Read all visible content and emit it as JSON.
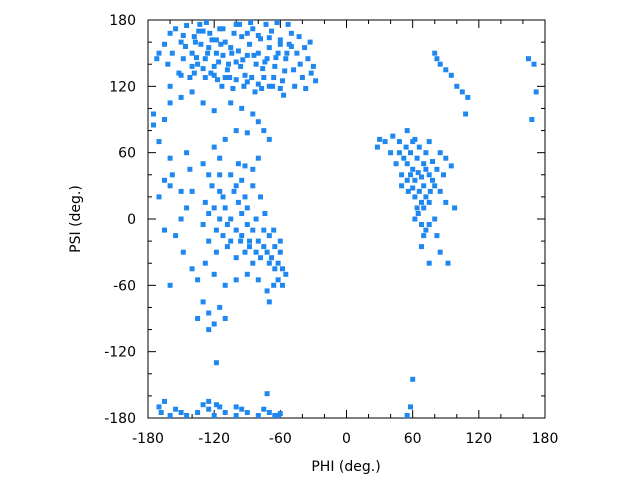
{
  "chart_data": {
    "type": "scatter",
    "title": "",
    "xlabel": "PHI (deg.)",
    "ylabel": "PSI (deg.)",
    "xlim": [
      -180,
      180
    ],
    "ylim": [
      -180,
      180
    ],
    "xticks": [
      -180,
      -120,
      -60,
      0,
      60,
      120,
      180
    ],
    "yticks": [
      -180,
      -120,
      -60,
      0,
      60,
      120,
      180
    ],
    "xtick_labels": [
      "-180",
      "-120",
      "-60",
      "0",
      "60",
      "120",
      "180"
    ],
    "ytick_labels": [
      "-180",
      "-120",
      "-60",
      "0",
      "60",
      "120",
      "180"
    ],
    "grid": false,
    "legend": "none",
    "marker_color": "#1f88f0",
    "marker": "square",
    "points": [
      [
        -160,
        168
      ],
      [
        -155,
        172
      ],
      [
        -150,
        160
      ],
      [
        -145,
        175
      ],
      [
        -140,
        150
      ],
      [
        -138,
        165
      ],
      [
        -135,
        140
      ],
      [
        -132,
        158
      ],
      [
        -130,
        170
      ],
      [
        -128,
        145
      ],
      [
        -125,
        155
      ],
      [
        -122,
        162
      ],
      [
        -120,
        138
      ],
      [
        -118,
        150
      ],
      [
        -115,
        172
      ],
      [
        -112,
        148
      ],
      [
        -110,
        160
      ],
      [
        -108,
        135
      ],
      [
        -105,
        155
      ],
      [
        -102,
        168
      ],
      [
        -100,
        142
      ],
      [
        -98,
        152
      ],
      [
        -95,
        165
      ],
      [
        -92,
        130
      ],
      [
        -90,
        148
      ],
      [
        -88,
        158
      ],
      [
        -85,
        172
      ],
      [
        -82,
        140
      ],
      [
        -80,
        150
      ],
      [
        -78,
        163
      ],
      [
        -75,
        128
      ],
      [
        -72,
        145
      ],
      [
        -70,
        155
      ],
      [
        -68,
        170
      ],
      [
        -65,
        138
      ],
      [
        -62,
        150
      ],
      [
        -60,
        162
      ],
      [
        -58,
        125
      ],
      [
        -55,
        145
      ],
      [
        -52,
        158
      ],
      [
        -50,
        168
      ],
      [
        -48,
        135
      ],
      [
        -45,
        150
      ],
      [
        -42,
        140
      ],
      [
        -40,
        128
      ],
      [
        -38,
        155
      ],
      [
        -35,
        145
      ],
      [
        -32,
        132
      ],
      [
        -30,
        138
      ],
      [
        -28,
        125
      ],
      [
        -170,
        150
      ],
      [
        -172,
        145
      ],
      [
        -165,
        158
      ],
      [
        -162,
        140
      ],
      [
        -158,
        150
      ],
      [
        -152,
        132
      ],
      [
        -148,
        145
      ],
      [
        -142,
        128
      ],
      [
        -137,
        160
      ],
      [
        -133,
        176
      ],
      [
        -127,
        178
      ],
      [
        -123,
        132
      ],
      [
        -117,
        126
      ],
      [
        -113,
        120
      ],
      [
        -107,
        140
      ],
      [
        -103,
        118
      ],
      [
        -97,
        176
      ],
      [
        -93,
        120
      ],
      [
        -87,
        178
      ],
      [
        -83,
        115
      ],
      [
        -77,
        118
      ],
      [
        -73,
        176
      ],
      [
        -67,
        120
      ],
      [
        -63,
        178
      ],
      [
        -57,
        112
      ],
      [
        -53,
        176
      ],
      [
        -47,
        120
      ],
      [
        -43,
        165
      ],
      [
        -37,
        118
      ],
      [
        -33,
        160
      ],
      [
        -118,
        162
      ],
      [
        -128,
        128
      ],
      [
        -138,
        132
      ],
      [
        -96,
        138
      ],
      [
        -86,
        128
      ],
      [
        -76,
        136
      ],
      [
        -66,
        128
      ],
      [
        -56,
        134
      ],
      [
        -116,
        142
      ],
      [
        -106,
        128
      ],
      [
        -146,
        156
      ],
      [
        -136,
        146
      ],
      [
        -126,
        150
      ],
      [
        -114,
        158
      ],
      [
        -104,
        150
      ],
      [
        -94,
        144
      ],
      [
        -84,
        148
      ],
      [
        -74,
        142
      ],
      [
        -64,
        146
      ],
      [
        -54,
        150
      ],
      [
        -148,
        166
      ],
      [
        -134,
        170
      ],
      [
        -124,
        168
      ],
      [
        -112,
        172
      ],
      [
        -100,
        176
      ],
      [
        -90,
        168
      ],
      [
        -80,
        166
      ],
      [
        -70,
        164
      ],
      [
        -60,
        158
      ],
      [
        -50,
        156
      ],
      [
        -140,
        138
      ],
      [
        -130,
        136
      ],
      [
        -120,
        130
      ],
      [
        -110,
        128
      ],
      [
        -100,
        126
      ],
      [
        -90,
        124
      ],
      [
        -80,
        122
      ],
      [
        -70,
        120
      ],
      [
        -60,
        118
      ],
      [
        -150,
        130
      ],
      [
        -160,
        120
      ],
      [
        -175,
        95
      ],
      [
        -175,
        85
      ],
      [
        -170,
        70
      ],
      [
        -150,
        110
      ],
      [
        -140,
        115
      ],
      [
        -130,
        105
      ],
      [
        -120,
        98
      ],
      [
        -105,
        105
      ],
      [
        -95,
        100
      ],
      [
        -85,
        95
      ],
      [
        -80,
        88
      ],
      [
        -75,
        80
      ],
      [
        -70,
        72
      ],
      [
        -90,
        78
      ],
      [
        -100,
        80
      ],
      [
        -110,
        72
      ],
      [
        -120,
        65
      ],
      [
        -160,
        105
      ],
      [
        -165,
        90
      ],
      [
        -100,
        -10
      ],
      [
        -105,
        0
      ],
      [
        -110,
        10
      ],
      [
        -95,
        5
      ],
      [
        -90,
        -5
      ],
      [
        -98,
        15
      ],
      [
        -108,
        -5
      ],
      [
        -115,
        0
      ],
      [
        -112,
        20
      ],
      [
        -102,
        25
      ],
      [
        -92,
        20
      ],
      [
        -85,
        -10
      ],
      [
        -88,
        -20
      ],
      [
        -95,
        -15
      ],
      [
        -105,
        -20
      ],
      [
        -118,
        -10
      ],
      [
        -120,
        10
      ],
      [
        -125,
        5
      ],
      [
        -115,
        25
      ],
      [
        -100,
        30
      ],
      [
        -90,
        10
      ],
      [
        -82,
        0
      ],
      [
        -80,
        -20
      ],
      [
        -75,
        -25
      ],
      [
        -72,
        -30
      ],
      [
        -70,
        -40
      ],
      [
        -68,
        -35
      ],
      [
        -65,
        -45
      ],
      [
        -62,
        -40
      ],
      [
        -60,
        -30
      ],
      [
        -58,
        -45
      ],
      [
        -55,
        -50
      ],
      [
        -60,
        -20
      ],
      [
        -65,
        -25
      ],
      [
        -70,
        -15
      ],
      [
        -75,
        -10
      ],
      [
        -78,
        -35
      ],
      [
        -82,
        -30
      ],
      [
        -85,
        -40
      ],
      [
        -88,
        -25
      ],
      [
        -92,
        -30
      ],
      [
        -96,
        -20
      ],
      [
        -100,
        -35
      ],
      [
        -108,
        -25
      ],
      [
        -112,
        -15
      ],
      [
        -118,
        -30
      ],
      [
        -125,
        -20
      ],
      [
        -130,
        -5
      ],
      [
        -128,
        15
      ],
      [
        -122,
        30
      ],
      [
        -115,
        40
      ],
      [
        -105,
        40
      ],
      [
        -95,
        35
      ],
      [
        -85,
        30
      ],
      [
        -78,
        20
      ],
      [
        -74,
        5
      ],
      [
        -66,
        -10
      ],
      [
        -62,
        -55
      ],
      [
        -58,
        -60
      ],
      [
        -66,
        -60
      ],
      [
        -140,
        25
      ],
      [
        -145,
        10
      ],
      [
        -150,
        0
      ],
      [
        -155,
        -15
      ],
      [
        -148,
        -30
      ],
      [
        -140,
        -45
      ],
      [
        -135,
        -55
      ],
      [
        -128,
        -40
      ],
      [
        -120,
        -50
      ],
      [
        -110,
        -60
      ],
      [
        -100,
        -55
      ],
      [
        -90,
        -50
      ],
      [
        -80,
        -55
      ],
      [
        -72,
        -65
      ],
      [
        -70,
        -75
      ],
      [
        -130,
        -75
      ],
      [
        -125,
        -85
      ],
      [
        -115,
        -80
      ],
      [
        -120,
        -95
      ],
      [
        -125,
        -100
      ],
      [
        -135,
        -90
      ],
      [
        -110,
        -90
      ],
      [
        -118,
        -130
      ],
      [
        -160,
        -60
      ],
      [
        -165,
        -10
      ],
      [
        -170,
        20
      ],
      [
        -160,
        55
      ],
      [
        -158,
        40
      ],
      [
        -145,
        60
      ],
      [
        -130,
        50
      ],
      [
        -125,
        40
      ],
      [
        -160,
        30
      ],
      [
        -150,
        25
      ],
      [
        -165,
        35
      ],
      [
        -142,
        45
      ],
      [
        -115,
        55
      ],
      [
        -98,
        50
      ],
      [
        -92,
        48
      ],
      [
        -85,
        45
      ],
      [
        -80,
        55
      ],
      [
        55,
        50
      ],
      [
        60,
        45
      ],
      [
        58,
        40
      ],
      [
        62,
        35
      ],
      [
        65,
        42
      ],
      [
        68,
        38
      ],
      [
        70,
        30
      ],
      [
        66,
        25
      ],
      [
        60,
        28
      ],
      [
        55,
        35
      ],
      [
        50,
        40
      ],
      [
        52,
        55
      ],
      [
        58,
        60
      ],
      [
        64,
        55
      ],
      [
        70,
        50
      ],
      [
        72,
        45
      ],
      [
        75,
        40
      ],
      [
        78,
        35
      ],
      [
        76,
        25
      ],
      [
        72,
        20
      ],
      [
        68,
        15
      ],
      [
        64,
        10
      ],
      [
        62,
        20
      ],
      [
        56,
        25
      ],
      [
        50,
        30
      ],
      [
        45,
        50
      ],
      [
        48,
        60
      ],
      [
        54,
        65
      ],
      [
        60,
        70
      ],
      [
        66,
        65
      ],
      [
        72,
        60
      ],
      [
        78,
        52
      ],
      [
        82,
        45
      ],
      [
        80,
        30
      ],
      [
        75,
        15
      ],
      [
        70,
        10
      ],
      [
        65,
        5
      ],
      [
        62,
        0
      ],
      [
        68,
        -5
      ],
      [
        72,
        -10
      ],
      [
        40,
        60
      ],
      [
        35,
        70
      ],
      [
        30,
        72
      ],
      [
        28,
        65
      ],
      [
        42,
        75
      ],
      [
        48,
        70
      ],
      [
        55,
        80
      ],
      [
        62,
        72
      ],
      [
        75,
        70
      ],
      [
        85,
        60
      ],
      [
        90,
        55
      ],
      [
        95,
        48
      ],
      [
        88,
        40
      ],
      [
        85,
        25
      ],
      [
        90,
        15
      ],
      [
        98,
        10
      ],
      [
        80,
        0
      ],
      [
        75,
        -5
      ],
      [
        70,
        -15
      ],
      [
        68,
        -25
      ],
      [
        82,
        -15
      ],
      [
        85,
        -30
      ],
      [
        75,
        -40
      ],
      [
        92,
        -40
      ],
      [
        60,
        -145
      ],
      [
        58,
        -170
      ],
      [
        55,
        -178
      ],
      [
        80,
        150
      ],
      [
        85,
        140
      ],
      [
        90,
        135
      ],
      [
        82,
        145
      ],
      [
        95,
        130
      ],
      [
        100,
        120
      ],
      [
        105,
        115
      ],
      [
        108,
        95
      ],
      [
        110,
        110
      ],
      [
        165,
        145
      ],
      [
        170,
        140
      ],
      [
        172,
        115
      ],
      [
        168,
        90
      ],
      [
        -170,
        -170
      ],
      [
        -168,
        -175
      ],
      [
        -160,
        -178
      ],
      [
        -155,
        -172
      ],
      [
        -150,
        -175
      ],
      [
        -145,
        -180
      ],
      [
        -135,
        -175
      ],
      [
        -130,
        -168
      ],
      [
        -125,
        -172
      ],
      [
        -120,
        -178
      ],
      [
        -115,
        -170
      ],
      [
        -110,
        -175
      ],
      [
        -100,
        -178
      ],
      [
        -95,
        -172
      ],
      [
        -90,
        -175
      ],
      [
        -80,
        -178
      ],
      [
        -75,
        -172
      ],
      [
        -70,
        -175
      ],
      [
        -65,
        -180
      ],
      [
        -60,
        -176
      ],
      [
        -125,
        -165
      ],
      [
        -118,
        -168
      ],
      [
        -100,
        -170
      ],
      [
        -72,
        -158
      ],
      [
        -62,
        -178
      ],
      [
        -165,
        -165
      ]
    ]
  }
}
